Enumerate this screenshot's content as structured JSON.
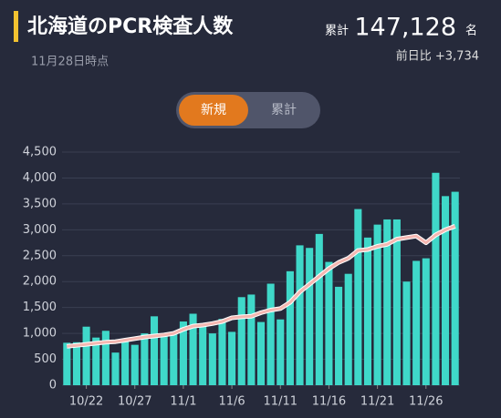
{
  "header": {
    "title": "北海道のPCR検査人数",
    "date": "11月28日時点",
    "total_label": "累計",
    "total_value": "147,128",
    "unit": "名",
    "change": "前日比 +3,734"
  },
  "toggle": {
    "options": [
      "新規",
      "累計"
    ]
  },
  "chart_data": {
    "type": "bar",
    "categories": [
      null,
      null,
      "10/22",
      null,
      null,
      null,
      null,
      "10/27",
      null,
      null,
      null,
      null,
      "11/1",
      null,
      null,
      null,
      null,
      "11/6",
      null,
      null,
      null,
      null,
      "11/11",
      null,
      null,
      null,
      null,
      "11/16",
      null,
      null,
      null,
      null,
      "11/21",
      null,
      null,
      null,
      null,
      "11/26",
      null,
      null,
      null
    ],
    "values": [
      820,
      830,
      1130,
      920,
      1050,
      630,
      880,
      780,
      1000,
      1330,
      960,
      1000,
      1230,
      1380,
      1150,
      1000,
      1280,
      1030,
      1700,
      1750,
      1220,
      1960,
      1270,
      2200,
      2700,
      2650,
      2920,
      2380,
      1900,
      2150,
      3400,
      2850,
      3100,
      3200,
      3200,
      2000,
      2400,
      2450,
      4100,
      3650,
      3734
    ],
    "color": "#3fd8c9",
    "line": {
      "color": "#f5b7b1",
      "values": [
        750,
        770,
        790,
        810,
        830,
        840,
        870,
        900,
        930,
        950,
        970,
        1000,
        1080,
        1140,
        1160,
        1190,
        1230,
        1300,
        1320,
        1330,
        1400,
        1450,
        1480,
        1600,
        1800,
        1950,
        2100,
        2250,
        2370,
        2450,
        2600,
        2620,
        2680,
        2720,
        2820,
        2850,
        2880,
        2750,
        2900,
        3000,
        3070
      ]
    },
    "ylim": [
      0,
      4500
    ],
    "yticks": [
      0,
      500,
      {
        "value": 1000,
        "label": "1,000"
      },
      {
        "value": 1500,
        "label": "1,500"
      },
      {
        "value": 2000,
        "label": "2,000"
      },
      {
        "value": 2500,
        "label": "2,500"
      },
      {
        "value": 3000,
        "label": "3,000"
      },
      {
        "value": 3500,
        "label": "3,500"
      },
      {
        "value": 4000,
        "label": "4,000"
      },
      {
        "value": 4500,
        "label": "4,500"
      }
    ],
    "grid": true
  }
}
